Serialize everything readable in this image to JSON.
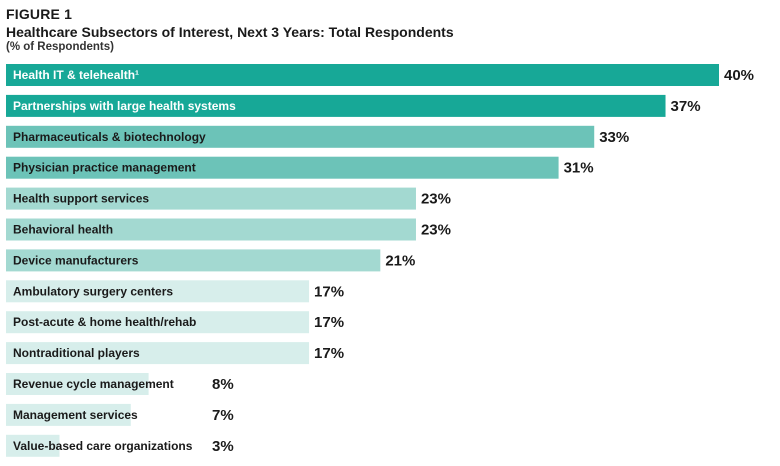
{
  "figure_label": "FIGURE 1",
  "chart_data": {
    "type": "bar",
    "orientation": "horizontal",
    "title": "Healthcare Subsectors of Interest, Next 3 Years: Total Respondents",
    "subtitle": "(% of Respondents)",
    "categories": [
      "Health IT & telehealth¹",
      "Partnerships with large health systems",
      "Pharmaceuticals & biotechnology",
      "Physician practice management",
      "Health support services",
      "Behavioral health",
      "Device manufacturers",
      "Ambulatory surgery centers",
      "Post-acute & home health/rehab",
      "Nontraditional players",
      "Revenue cycle management",
      "Management services",
      "Value-based care organizations"
    ],
    "values": [
      40,
      37,
      33,
      31,
      23,
      23,
      21,
      17,
      17,
      17,
      8,
      7,
      3
    ],
    "value_labels": [
      "40%",
      "37%",
      "33%",
      "31%",
      "23%",
      "23%",
      "21%",
      "17%",
      "17%",
      "17%",
      "8%",
      "7%",
      "3%"
    ],
    "xlim": [
      0,
      40
    ],
    "grid": false,
    "legend": "none"
  },
  "colors": {
    "dark": "#17a897",
    "medium": "#6cc3b8",
    "light": "#a3d9d1",
    "pale": "#d7eeeb",
    "text_on_dark": "#ffffff",
    "text_on_light": "#1a1a1a"
  }
}
